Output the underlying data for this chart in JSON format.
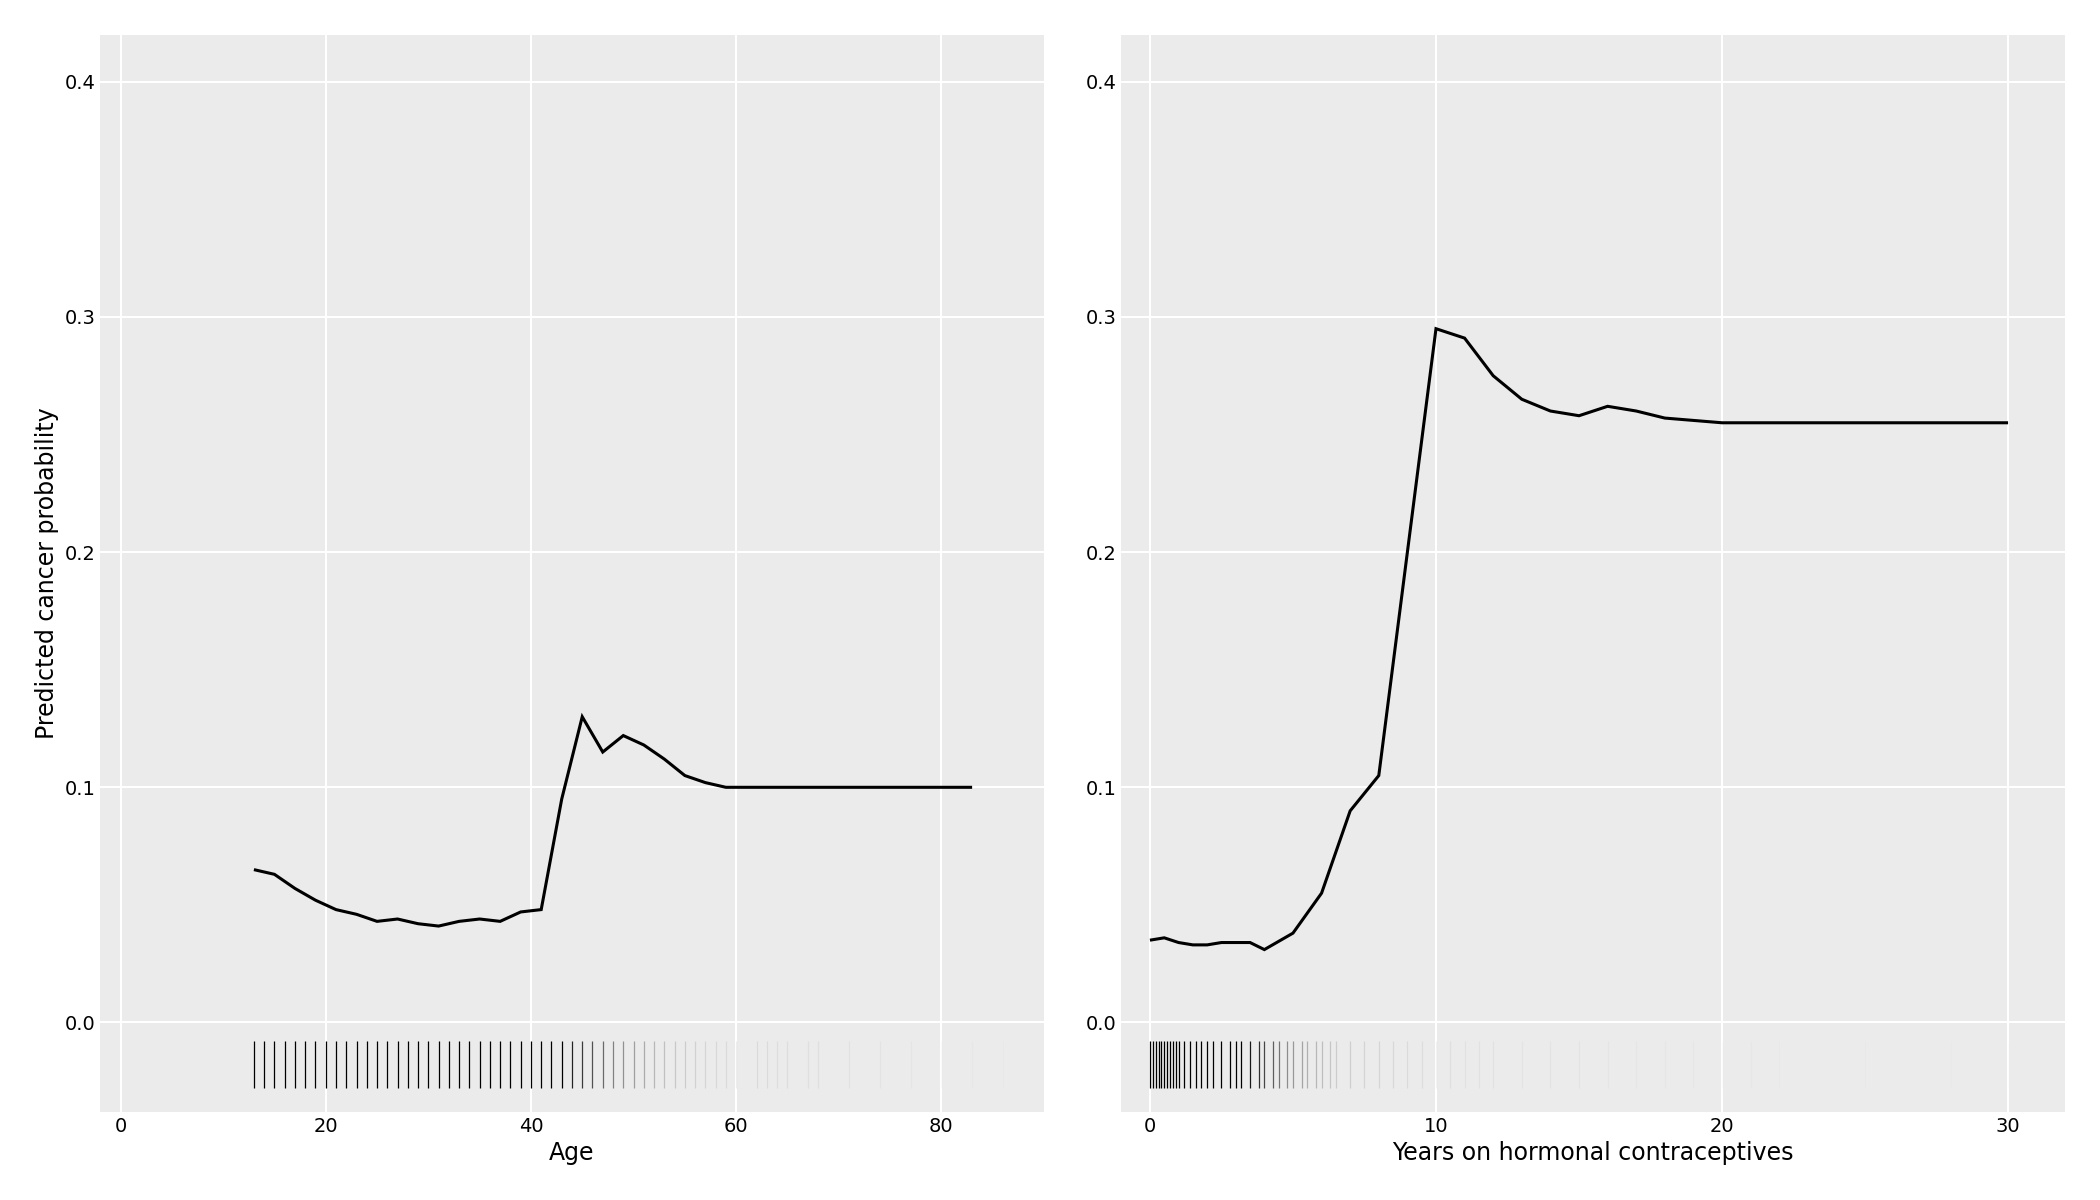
{
  "age_x": [
    13,
    15,
    17,
    19,
    21,
    23,
    25,
    27,
    29,
    31,
    33,
    35,
    37,
    39,
    41,
    43,
    45,
    47,
    49,
    51,
    53,
    55,
    57,
    59,
    61,
    63,
    65,
    67,
    69,
    71,
    73,
    75,
    77,
    79,
    81,
    83
  ],
  "age_y": [
    0.065,
    0.063,
    0.057,
    0.052,
    0.048,
    0.046,
    0.043,
    0.044,
    0.042,
    0.041,
    0.043,
    0.044,
    0.043,
    0.047,
    0.048,
    0.095,
    0.13,
    0.115,
    0.122,
    0.118,
    0.112,
    0.105,
    0.102,
    0.1,
    0.1,
    0.1,
    0.1,
    0.1,
    0.1,
    0.1,
    0.1,
    0.1,
    0.1,
    0.1,
    0.1,
    0.1
  ],
  "age_rug": [
    13,
    14,
    15,
    16,
    17,
    18,
    19,
    20,
    21,
    22,
    23,
    24,
    25,
    26,
    27,
    28,
    29,
    30,
    31,
    32,
    33,
    34,
    35,
    36,
    37,
    38,
    39,
    40,
    41,
    42,
    43,
    44,
    45,
    46,
    47,
    48,
    49,
    50,
    51,
    52,
    53,
    54,
    55,
    56,
    57,
    58,
    59,
    60,
    62,
    63,
    64,
    65,
    67,
    68,
    71,
    74,
    77,
    80,
    83,
    86
  ],
  "age_rug_alpha": [
    1.0,
    1.0,
    1.0,
    1.0,
    1.0,
    1.0,
    1.0,
    1.0,
    1.0,
    1.0,
    1.0,
    1.0,
    1.0,
    1.0,
    1.0,
    1.0,
    1.0,
    1.0,
    1.0,
    1.0,
    1.0,
    1.0,
    1.0,
    1.0,
    1.0,
    1.0,
    1.0,
    1.0,
    1.0,
    1.0,
    1.0,
    0.85,
    0.75,
    0.65,
    0.55,
    0.45,
    0.38,
    0.32,
    0.27,
    0.22,
    0.18,
    0.15,
    0.13,
    0.11,
    0.09,
    0.08,
    0.07,
    0.07,
    0.07,
    0.07,
    0.06,
    0.06,
    0.05,
    0.05,
    0.04,
    0.03,
    0.025,
    0.02,
    0.015,
    0.01
  ],
  "hc_x": [
    0,
    0.5,
    1,
    1.5,
    2,
    2.5,
    3,
    3.5,
    4,
    5,
    6,
    7,
    8,
    9,
    10,
    11,
    12,
    13,
    14,
    15,
    16,
    17,
    18,
    19,
    20,
    21,
    22,
    23,
    24,
    25,
    26,
    27,
    28,
    29,
    30
  ],
  "hc_y": [
    0.035,
    0.036,
    0.034,
    0.033,
    0.033,
    0.034,
    0.034,
    0.034,
    0.031,
    0.038,
    0.055,
    0.09,
    0.105,
    0.2,
    0.295,
    0.291,
    0.275,
    0.265,
    0.26,
    0.258,
    0.262,
    0.26,
    0.257,
    0.256,
    0.255,
    0.255,
    0.255,
    0.255,
    0.255,
    0.255,
    0.255,
    0.255,
    0.255,
    0.255,
    0.255
  ],
  "hc_rug": [
    0,
    0.1,
    0.2,
    0.3,
    0.4,
    0.5,
    0.6,
    0.7,
    0.8,
    0.9,
    1.0,
    1.2,
    1.4,
    1.6,
    1.8,
    2.0,
    2.2,
    2.5,
    2.8,
    3.0,
    3.2,
    3.5,
    3.8,
    4.0,
    4.3,
    4.5,
    4.8,
    5.0,
    5.3,
    5.5,
    5.8,
    6.0,
    6.3,
    6.5,
    7.0,
    7.5,
    8.0,
    8.5,
    9.0,
    9.5,
    10.0,
    10.5,
    11.0,
    11.5,
    12.0,
    13.0,
    14.0,
    15.0,
    16.0,
    17.0,
    18.0,
    19.0,
    20.0,
    21.0,
    22.0,
    25.0,
    28.0,
    30.0
  ],
  "hc_rug_alpha": [
    1.0,
    1.0,
    1.0,
    1.0,
    1.0,
    1.0,
    1.0,
    1.0,
    1.0,
    1.0,
    1.0,
    1.0,
    1.0,
    1.0,
    1.0,
    1.0,
    1.0,
    1.0,
    1.0,
    1.0,
    1.0,
    0.9,
    0.8,
    0.7,
    0.6,
    0.5,
    0.4,
    0.35,
    0.3,
    0.25,
    0.22,
    0.19,
    0.16,
    0.13,
    0.12,
    0.1,
    0.09,
    0.08,
    0.07,
    0.06,
    0.05,
    0.05,
    0.04,
    0.04,
    0.04,
    0.03,
    0.03,
    0.03,
    0.025,
    0.02,
    0.02,
    0.02,
    0.015,
    0.015,
    0.01,
    0.01,
    0.008,
    0.006
  ],
  "ylabel": "Predicted cancer probability",
  "xlabel_age": "Age",
  "xlabel_hc": "Years on hormonal contraceptives",
  "ylim": [
    -0.038,
    0.42
  ],
  "age_xlim": [
    -2,
    90
  ],
  "hc_xlim": [
    -1,
    32
  ],
  "age_xticks": [
    0,
    20,
    40,
    60,
    80
  ],
  "hc_xticks": [
    0,
    10,
    20,
    30
  ],
  "yticks": [
    0.0,
    0.1,
    0.2,
    0.3,
    0.4
  ],
  "line_color": "#000000",
  "line_width": 2.2,
  "bg_color": "#ebebeb",
  "grid_color": "#ffffff",
  "rug_color": "#000000",
  "label_font_size": 17,
  "tick_font_size": 14
}
